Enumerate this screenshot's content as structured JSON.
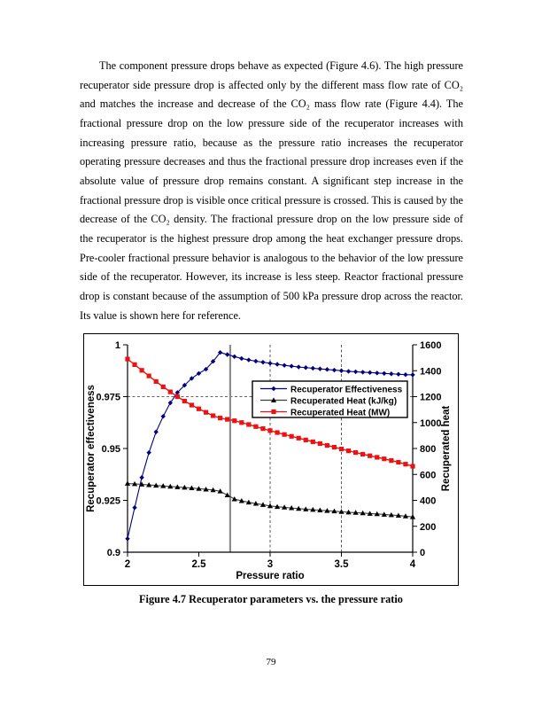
{
  "page": {
    "number": "79"
  },
  "body_text": {
    "paragraph": "The component pressure drops behave as expected (Figure 4.6).  The high pressure recuperator side pressure drop is affected only by the different mass flow rate of CO₂ and matches the increase and decrease of the CO₂ mass flow rate (Figure 4.4).  The fractional pressure drop on the low pressure side of the recuperator increases with increasing pressure ratio, because as the pressure ratio increases the recuperator operating pressure decreases and thus the fractional pressure drop increases even if the absolute value of pressure drop remains constant.  A significant step increase in the fractional pressure drop is visible once critical pressure is crossed.  This is caused by the decrease of the CO₂ density.  The fractional pressure drop on the low pressure side of the recuperator is the highest pressure drop among the heat exchanger pressure drops.  Pre-cooler fractional pressure behavior is analogous to the behavior of the low pressure side of the recuperator.  However, its increase is less steep.  Reactor fractional pressure drop is constant because of the assumption of 500 kPa pressure drop across the reactor.  Its value is shown here for reference."
  },
  "figure": {
    "caption": "Figure 4.7 Recuperator parameters vs. the pressure ratio"
  },
  "chart_data": {
    "type": "line",
    "title": "",
    "xlabel": "Pressure ratio",
    "ylabel_left": "Recuperator effectiveness",
    "ylabel_right": "Recuperated heat",
    "x_range": [
      2,
      4
    ],
    "x_ticks": [
      "2",
      "2.5",
      "3",
      "3.5",
      "4"
    ],
    "y_left_range": [
      0.9,
      1.0
    ],
    "y_left_ticks": [
      "0.9",
      "0.925",
      "0.95",
      "0.975",
      "1"
    ],
    "y_right_range": [
      0,
      1600
    ],
    "y_right_ticks": [
      "0",
      "200",
      "400",
      "600",
      "800",
      "1000",
      "1200",
      "1400",
      "1600"
    ],
    "grid": "partial",
    "legend_position": "upper-middle-right",
    "reference_lines": {
      "horizontal_dashed_left_axis": [
        0.975
      ],
      "vertical_dashed": [
        3,
        3.5
      ],
      "vertical_solid_gray": [
        2.72
      ]
    },
    "x": [
      2,
      2.05,
      2.1,
      2.15,
      2.2,
      2.25,
      2.3,
      2.35,
      2.4,
      2.45,
      2.5,
      2.55,
      2.6,
      2.65,
      2.7,
      2.75,
      2.8,
      2.85,
      2.9,
      2.95,
      3,
      3.05,
      3.1,
      3.15,
      3.2,
      3.25,
      3.3,
      3.35,
      3.4,
      3.45,
      3.5,
      3.55,
      3.6,
      3.65,
      3.7,
      3.75,
      3.8,
      3.85,
      3.9,
      3.95,
      4
    ],
    "series": [
      {
        "name": "Recuperator Effectiveness",
        "axis": "left",
        "marker": "diamond",
        "color": "#000080",
        "line_color": "#000080",
        "values": [
          0.9065,
          0.9215,
          0.936,
          0.948,
          0.958,
          0.9655,
          0.972,
          0.977,
          0.9805,
          0.9838,
          0.9862,
          0.9882,
          0.992,
          0.9963,
          0.9953,
          0.9943,
          0.9934,
          0.9927,
          0.9921,
          0.9916,
          0.9911,
          0.9906,
          0.9901,
          0.9897,
          0.9893,
          0.989,
          0.9887,
          0.9884,
          0.9881,
          0.9878,
          0.9875,
          0.9872,
          0.987,
          0.9868,
          0.9866,
          0.9864,
          0.9862,
          0.986,
          0.9858,
          0.9856,
          0.9855
        ]
      },
      {
        "name": "Recuperated Heat (kJ/kg)",
        "axis": "right",
        "marker": "triangle",
        "color": "#000000",
        "line_color": "#3d3d3d",
        "values": [
          530,
          527,
          523,
          519,
          515,
          511,
          507,
          503,
          499,
          495,
          490,
          485,
          480,
          470,
          440,
          410,
          396,
          385,
          375,
          366,
          357,
          351,
          346,
          341,
          336,
          332,
          328,
          324,
          320,
          316,
          312,
          308,
          305,
          302,
          298,
          295,
          291,
          287,
          283,
          278,
          272
        ]
      },
      {
        "name": "Recuperated Heat (MW)",
        "axis": "right",
        "marker": "square",
        "color": "#ee1111",
        "line_color": "#ee1111",
        "values": [
          1490,
          1447,
          1403,
          1360,
          1317,
          1276,
          1237,
          1200,
          1166,
          1135,
          1106,
          1079,
          1053,
          1035,
          1025,
          1014,
          1000,
          985,
          969,
          953,
          938,
          923,
          908,
          894,
          880,
          866,
          852,
          838,
          824,
          810,
          796,
          782,
          769,
          756,
          744,
          732,
          720,
          707,
          694,
          679,
          663
        ]
      }
    ]
  },
  "colors": {
    "page_bg": "#ffffff",
    "text": "#000000",
    "axis": "#000000",
    "gridline_dashed": "#333333",
    "reference_line_gray": "#8c8c8c",
    "legend_bg": "#ffffff",
    "legend_border": "#000000"
  }
}
